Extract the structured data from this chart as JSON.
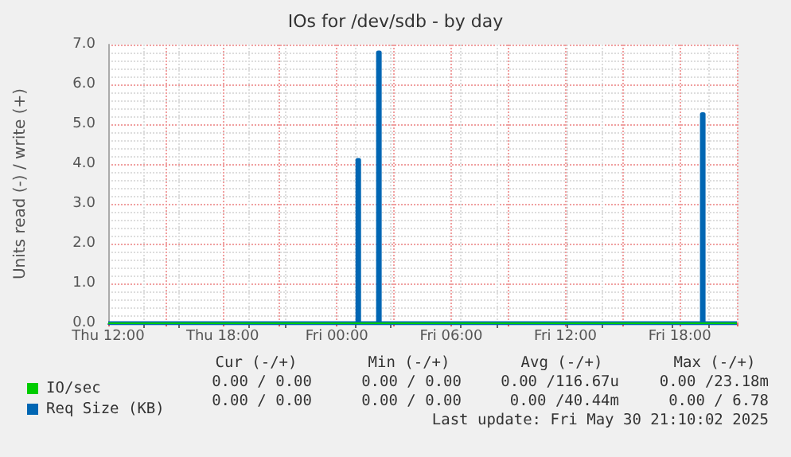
{
  "chart_data": {
    "type": "step",
    "title": "IOs for /dev/sdb - by day",
    "ylabel": "Units read (-) / write (+)",
    "xlim": [
      "2025-05-29T12:00",
      "2025-05-30T21:00"
    ],
    "xticks": [
      {
        "value": "2025-05-29T12:00",
        "label": "Thu 12:00"
      },
      {
        "value": "2025-05-29T15:00",
        "label": null
      },
      {
        "value": "2025-05-29T18:00",
        "label": "Thu 18:00"
      },
      {
        "value": "2025-05-29T21:00",
        "label": null
      },
      {
        "value": "2025-05-30T00:00",
        "label": "Fri 00:00"
      },
      {
        "value": "2025-05-30T03:00",
        "label": null
      },
      {
        "value": "2025-05-30T06:00",
        "label": "Fri 06:00"
      },
      {
        "value": "2025-05-30T09:00",
        "label": null
      },
      {
        "value": "2025-05-30T12:00",
        "label": "Fri 12:00"
      },
      {
        "value": "2025-05-30T15:00",
        "label": null
      },
      {
        "value": "2025-05-30T18:00",
        "label": "Fri 18:00"
      },
      {
        "value": "2025-05-30T21:00",
        "label": null
      }
    ],
    "ylim": [
      0,
      7
    ],
    "yticks": [
      {
        "value": 0,
        "label": "0.0"
      },
      {
        "value": 1,
        "label": "1.0"
      },
      {
        "value": 2,
        "label": "2.0"
      },
      {
        "value": 3,
        "label": "3.0"
      },
      {
        "value": 4,
        "label": "4.0"
      },
      {
        "value": 5,
        "label": "5.0"
      },
      {
        "value": 6,
        "label": "6.0"
      },
      {
        "value": 7,
        "label": "7.0"
      }
    ],
    "grid": true,
    "legend": "bottom left",
    "marker": "none",
    "line_style": "solid",
    "series": [
      {
        "name": "IO/sec",
        "color": "#00cc00",
        "x": [
          "2025-05-29T12:00",
          "2025-05-30T21:00"
        ],
        "values": [
          0,
          0
        ]
      },
      {
        "name": "Req Size (KB)",
        "color": "#0066b3",
        "x": [
          "2025-05-29T12:00",
          "2025-05-30T01:00",
          "2025-05-30T01:05",
          "2025-05-30T01:10",
          "2025-05-30T02:05",
          "2025-05-30T02:10",
          "2025-05-30T02:15",
          "2025-05-30T19:05",
          "2025-05-30T19:10",
          "2025-05-30T19:15",
          "2025-05-30T21:00"
        ],
        "values": [
          0,
          0,
          4.1,
          0,
          0,
          6.8,
          0,
          0,
          5.25,
          0,
          0
        ]
      }
    ],
    "annotations": [
      "Cur (-/+)",
      "Min (-/+)",
      "Avg (-/+)",
      "Max (-/+)",
      "0.00 / 0.00",
      "0.00 / 0.00",
      "0.00 /116.67u",
      "0.00 /23.18m",
      "0.00 / 0.00",
      "0.00 / 0.00",
      "0.00 /40.44m",
      "0.00 / 6.78",
      "Last update: Fri May 30 21:10:02 2025"
    ]
  }
}
